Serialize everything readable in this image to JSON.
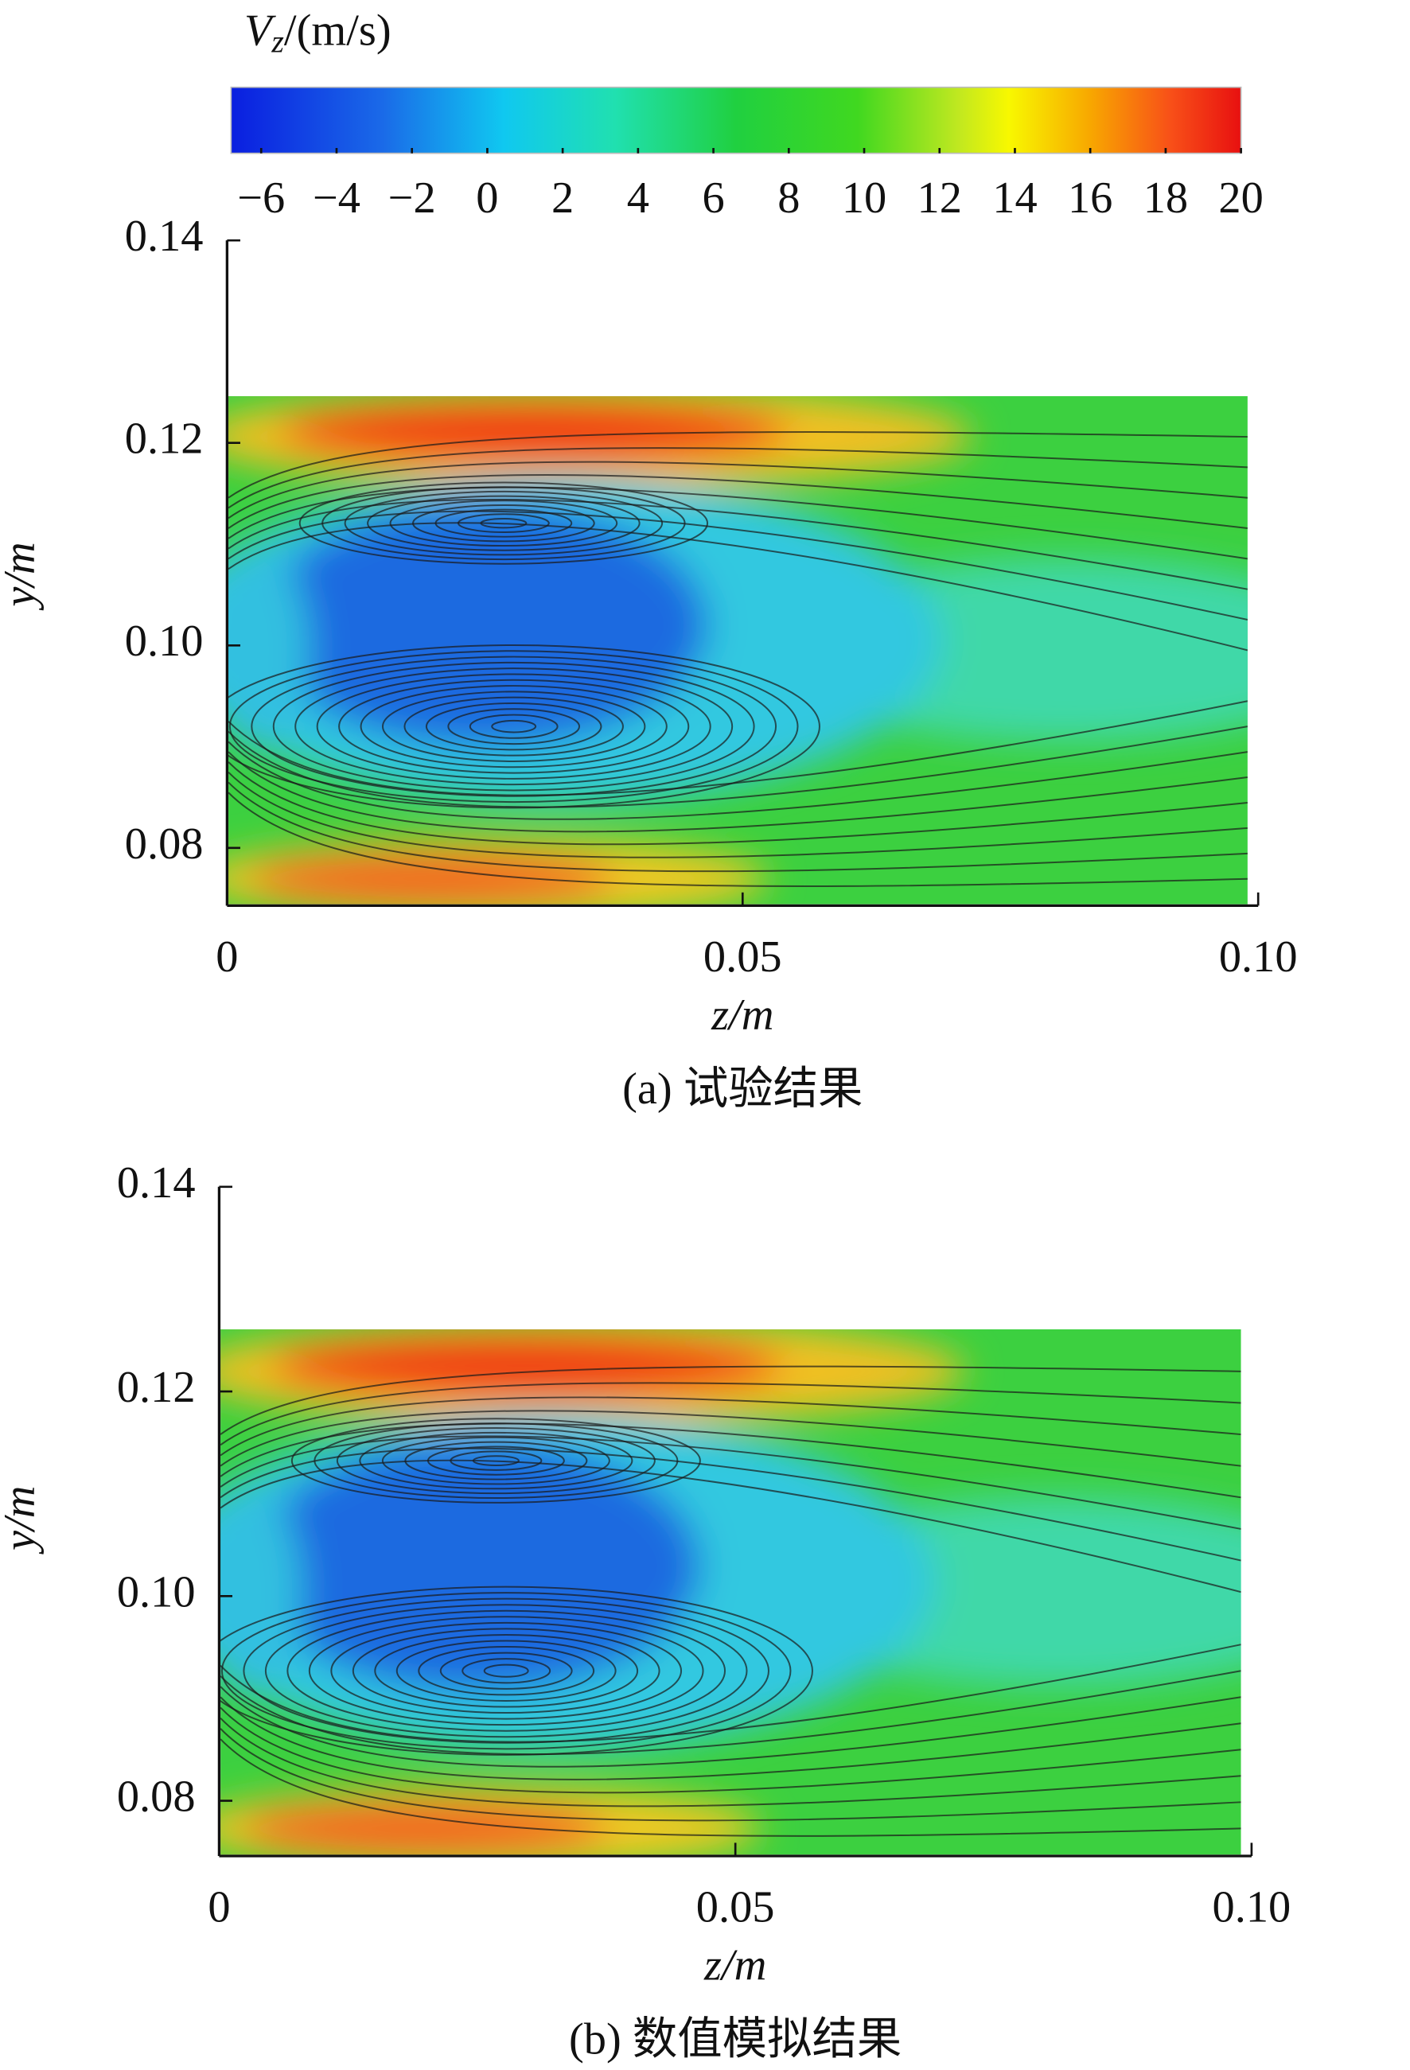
{
  "chart_data": [
    {
      "type": "colorbar",
      "title": {
        "symbol": "V",
        "subscript": "z",
        "unit": "/(m/s)"
      },
      "clim": [
        -6.8,
        20
      ],
      "ticks": [
        {
          "value": -6,
          "label": "−6"
        },
        {
          "value": -4,
          "label": "−4"
        },
        {
          "value": -2,
          "label": "−2"
        },
        0,
        2,
        4,
        6,
        8,
        10,
        12,
        14,
        16,
        18,
        20
      ]
    },
    {
      "type": "contour",
      "caption": "(a) 试验结果",
      "xlabel": "z/m",
      "ylabel": "y/m",
      "xlim": [
        0,
        0.1
      ],
      "ylim": [
        0.0743,
        0.14
      ],
      "xticks": [
        0,
        0.05,
        {
          "value": 0.1,
          "label": "0.10"
        }
      ],
      "yticks": [
        {
          "value": 0.08,
          "label": "0.08"
        },
        {
          "value": 0.1,
          "label": "0.10"
        },
        0.12,
        0.14
      ]
    },
    {
      "type": "contour",
      "caption": "(b) 数值模拟结果",
      "xlabel": "z/m",
      "ylabel": "y/m",
      "xlim": [
        0,
        0.1
      ],
      "ylim": [
        0.0746,
        0.14
      ],
      "xticks": [
        0,
        0.05,
        {
          "value": 0.1,
          "label": "0.10"
        }
      ],
      "yticks": [
        {
          "value": 0.08,
          "label": "0.08"
        },
        {
          "value": 0.1,
          "label": "0.10"
        },
        0.12,
        0.14
      ]
    }
  ]
}
